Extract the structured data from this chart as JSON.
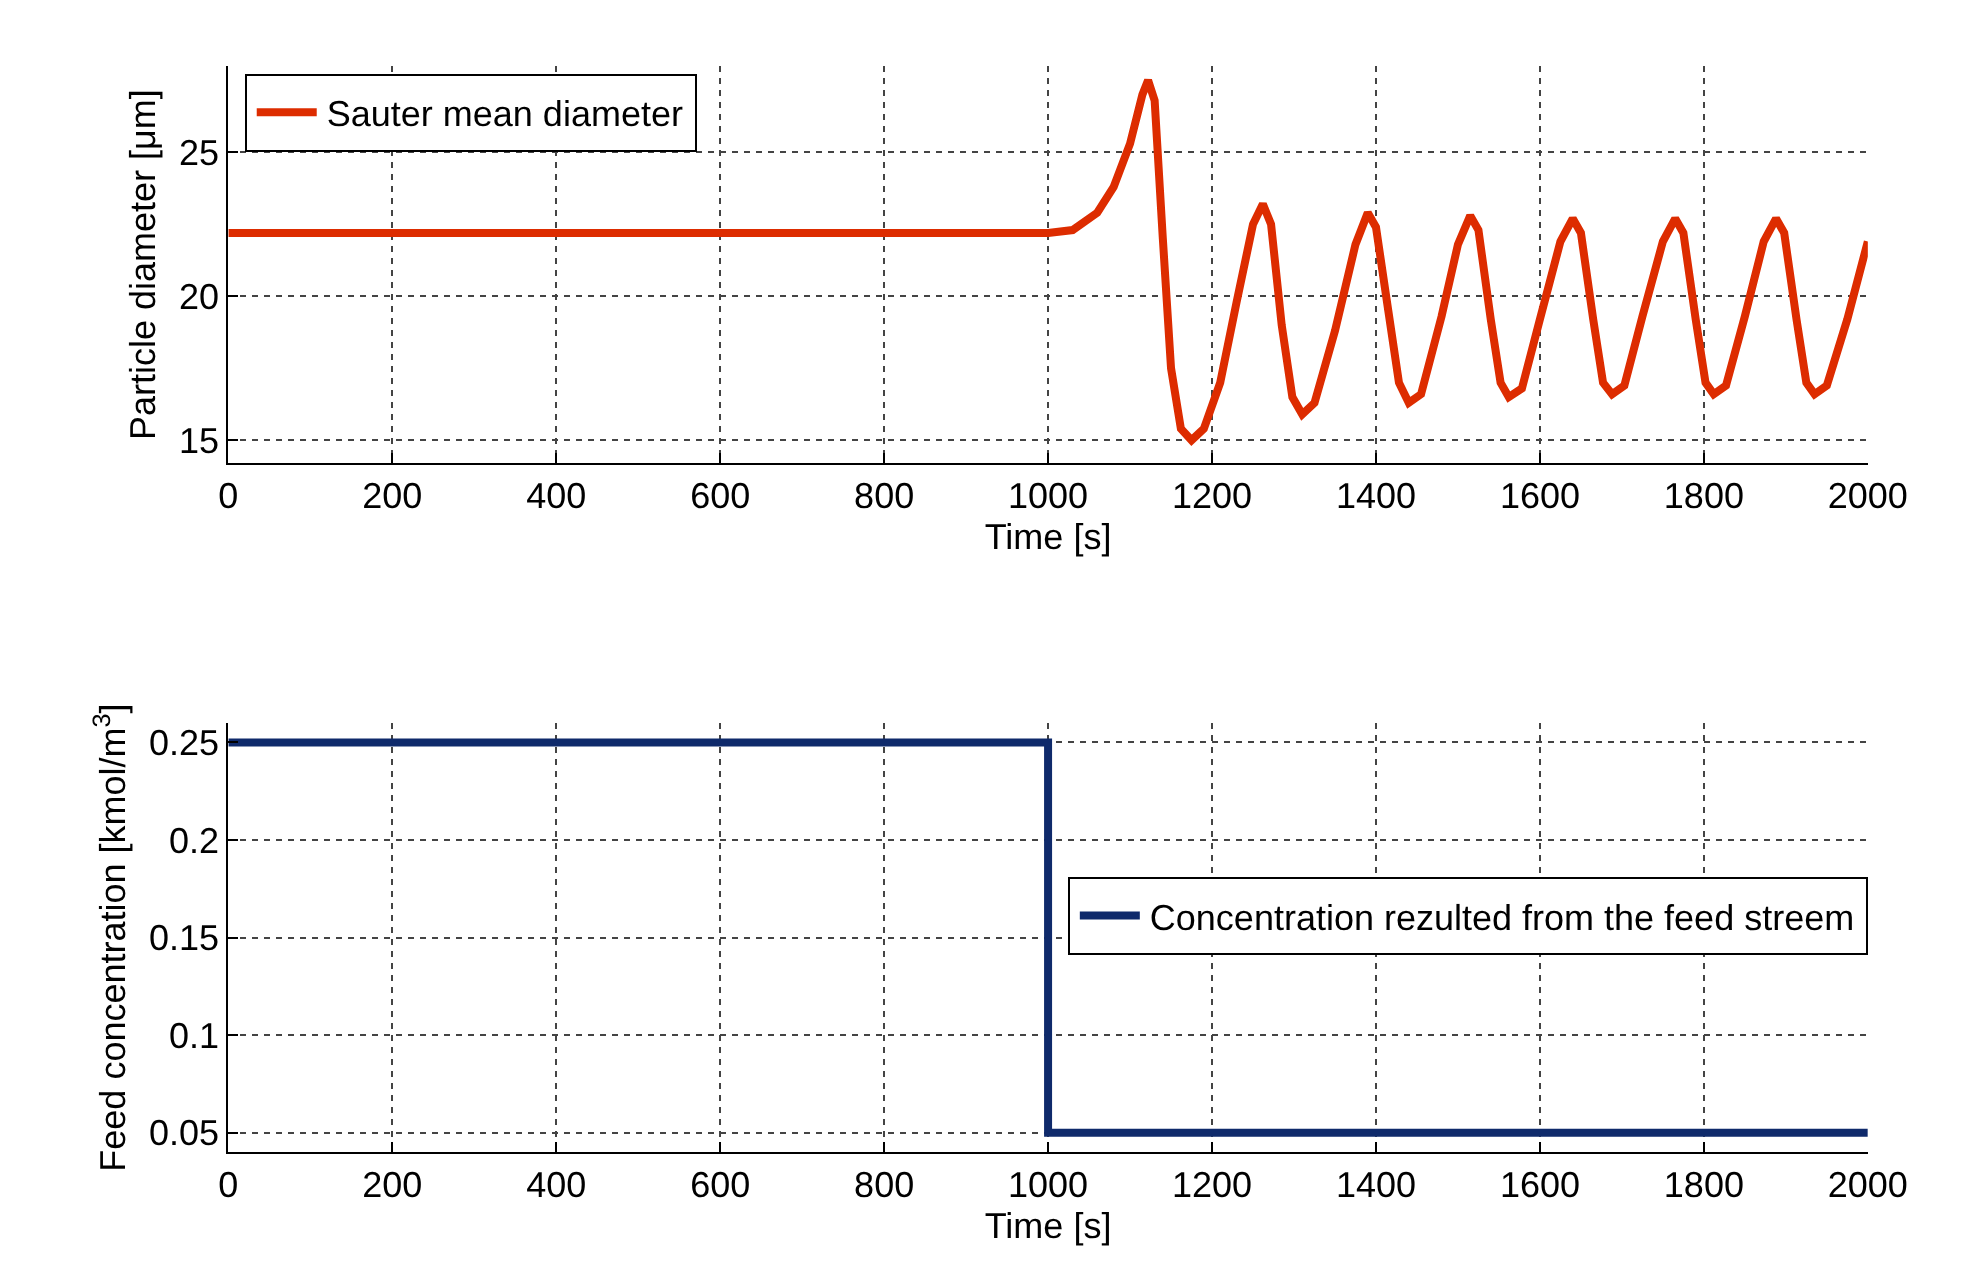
{
  "chart_data": [
    {
      "type": "line",
      "xlabel": "Time [s]",
      "ylabel": "Particle diameter [μm]",
      "xlim": [
        0,
        2000
      ],
      "xticks": [
        0,
        200,
        400,
        600,
        800,
        1000,
        1200,
        1400,
        1600,
        1800,
        2000
      ],
      "ylim": [
        14.2,
        28
      ],
      "yticks": [
        15,
        20,
        25
      ],
      "grid": true,
      "legend": "top left",
      "line_style": "solid",
      "series": [
        {
          "name": "Sauter mean diameter",
          "color": "#dd2c00",
          "x": [
            0,
            1000,
            1030,
            1060,
            1080,
            1100,
            1115,
            1122,
            1130,
            1140,
            1150,
            1162,
            1175,
            1190,
            1210,
            1230,
            1250,
            1262,
            1272,
            1285,
            1298,
            1310,
            1325,
            1350,
            1375,
            1390,
            1400,
            1415,
            1428,
            1440,
            1455,
            1480,
            1500,
            1515,
            1525,
            1540,
            1552,
            1562,
            1578,
            1600,
            1625,
            1640,
            1650,
            1665,
            1677,
            1688,
            1703,
            1725,
            1750,
            1765,
            1775,
            1790,
            1802,
            1812,
            1827,
            1850,
            1873,
            1888,
            1898,
            1913,
            1925,
            1935,
            1950,
            1975,
            2000
          ],
          "values": [
            22.2,
            22.2,
            22.3,
            22.9,
            23.8,
            25.3,
            27.0,
            27.5,
            26.8,
            22.0,
            17.5,
            15.4,
            15.0,
            15.4,
            17.0,
            19.8,
            22.5,
            23.2,
            22.5,
            19.0,
            16.5,
            15.9,
            16.3,
            18.8,
            21.8,
            22.9,
            22.4,
            19.5,
            17.0,
            16.3,
            16.6,
            19.3,
            21.8,
            22.8,
            22.3,
            19.2,
            17.0,
            16.5,
            16.8,
            19.2,
            21.9,
            22.7,
            22.2,
            19.2,
            17.0,
            16.6,
            16.9,
            19.3,
            21.9,
            22.7,
            22.2,
            19.2,
            17.0,
            16.6,
            16.9,
            19.3,
            21.9,
            22.7,
            22.2,
            19.2,
            17.0,
            16.6,
            16.9,
            19.2,
            21.9
          ]
        }
      ]
    },
    {
      "type": "step",
      "xlabel": "Time [s]",
      "ylabel": "Feed concentration [kmol/m$^{3}$]",
      "xlim": [
        0,
        2000
      ],
      "xticks": [
        0,
        200,
        400,
        600,
        800,
        1000,
        1200,
        1400,
        1600,
        1800,
        2000
      ],
      "ylim": [
        0.04,
        0.26
      ],
      "yticks": [
        0.05,
        0.1,
        0.15,
        0.2,
        0.25
      ],
      "grid": true,
      "legend": "right",
      "line_style": "solid",
      "series": [
        {
          "name": "Concentration rezulted from the feed streem",
          "color": "#0f2a6b",
          "x": [
            0,
            1000,
            2000
          ],
          "values": [
            0.25,
            0.05,
            0.05
          ]
        }
      ]
    }
  ]
}
